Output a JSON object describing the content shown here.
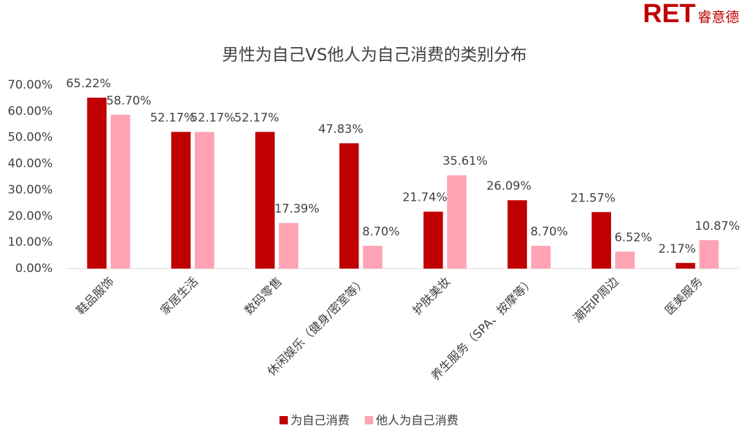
{
  "brand": {
    "logo": "RET",
    "name": "睿意德"
  },
  "chart_data": {
    "type": "bar",
    "title": "男性为自己VS他人为自己消费的类别分布",
    "categories": [
      "鞋品服饰",
      "家居生活",
      "数码零售",
      "休闲娱乐（健身/密室等）",
      "护肤美妆",
      "养生服务（SPA、按摩等）",
      "潮玩IP周边",
      "医美服务"
    ],
    "series": [
      {
        "name": "为自己消费",
        "color": "#c00000",
        "values": [
          65.22,
          52.17,
          52.17,
          47.83,
          21.74,
          26.09,
          21.57,
          2.17
        ],
        "value_labels": [
          "65.22%",
          "52.17%",
          "52.17%",
          "47.83%",
          "21.74%",
          "26.09%",
          "21.57%",
          "2.17%"
        ]
      },
      {
        "name": "他人为自己消费",
        "color": "#ffa3b4",
        "values": [
          58.7,
          52.17,
          17.39,
          8.7,
          35.61,
          8.7,
          6.52,
          10.87
        ],
        "value_labels": [
          "58.70%",
          "52.17%",
          "17.39%",
          "8.70%",
          "35.61%",
          "8.70%",
          "6.52%",
          "10.87%"
        ]
      }
    ],
    "ylim": [
      0,
      70
    ],
    "yticks": [
      {
        "value": 0,
        "label": "0.00%"
      },
      {
        "value": 10,
        "label": "10.00%"
      },
      {
        "value": 20,
        "label": "20.00%"
      },
      {
        "value": 30,
        "label": "30.00%"
      },
      {
        "value": 40,
        "label": "40.00%"
      },
      {
        "value": 50,
        "label": "50.00%"
      },
      {
        "value": 60,
        "label": "60.00%"
      },
      {
        "value": 70,
        "label": "70.00%"
      }
    ],
    "grid": false,
    "legend": "bottom"
  }
}
